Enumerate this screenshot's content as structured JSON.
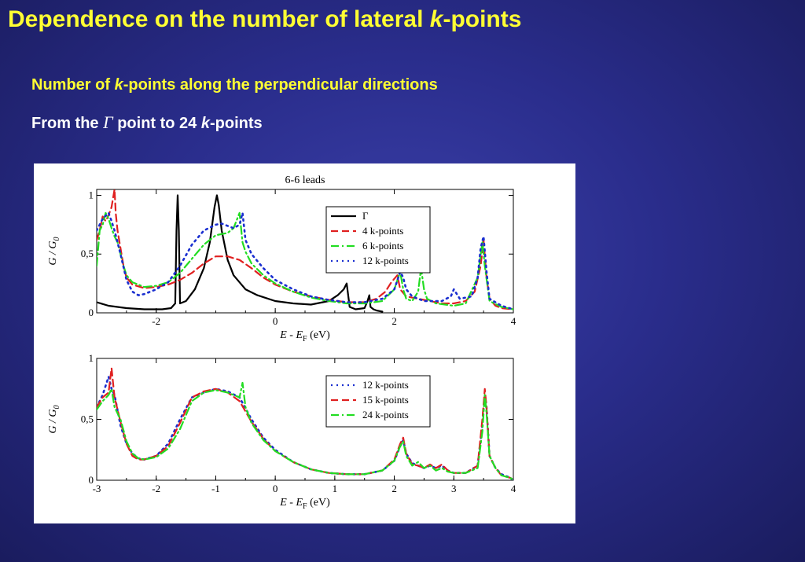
{
  "slide": {
    "title_main": "Dependence on the number of lateral ",
    "title_k": "k",
    "title_end": "-points",
    "line1_a": "Number of ",
    "line1_k": "k",
    "line1_b": "-points along the perpendicular directions",
    "line2_a": "From the ",
    "line2_gamma": "Γ",
    "line2_b": " point to 24 ",
    "line2_k": "k",
    "line2_c": "-points"
  },
  "chart_data": [
    {
      "type": "line",
      "title": "6-6 leads",
      "xlabel": "E - E_F (eV)",
      "ylabel": "G / G_0",
      "xlim": [
        -3,
        4
      ],
      "ylim": [
        0,
        1.05
      ],
      "xticks": [
        "-2",
        "0",
        "2",
        "4"
      ],
      "xtick_values": [
        -2,
        0,
        2,
        4
      ],
      "yticks": [
        "0",
        "0,5",
        "1"
      ],
      "ytick_values": [
        0,
        0.5,
        1
      ],
      "legend_position": "top-right",
      "series": [
        {
          "name": "Γ",
          "color": "#000000",
          "dash": "solid",
          "x": [
            -3.0,
            -2.8,
            -2.5,
            -2.2,
            -1.9,
            -1.75,
            -1.68,
            -1.66,
            -1.64,
            -1.62,
            -1.6,
            -1.5,
            -1.35,
            -1.2,
            -1.1,
            -1.02,
            -0.98,
            -0.95,
            -0.9,
            -0.8,
            -0.7,
            -0.5,
            -0.3,
            0.0,
            0.3,
            0.6,
            0.9,
            1.05,
            1.15,
            1.2,
            1.25,
            1.35,
            1.5,
            1.55,
            1.58,
            1.6,
            1.65,
            1.7,
            1.8
          ],
          "y": [
            0.09,
            0.06,
            0.04,
            0.03,
            0.03,
            0.04,
            0.08,
            0.7,
            1.0,
            0.7,
            0.08,
            0.1,
            0.2,
            0.38,
            0.6,
            0.9,
            1.0,
            0.92,
            0.7,
            0.45,
            0.32,
            0.2,
            0.15,
            0.1,
            0.08,
            0.07,
            0.1,
            0.15,
            0.2,
            0.25,
            0.05,
            0.03,
            0.04,
            0.1,
            0.15,
            0.05,
            0.03,
            0.02,
            0.01
          ]
        },
        {
          "name": "4 k-points",
          "color": "#e02020",
          "dash": "9,5",
          "x": [
            -3.0,
            -2.95,
            -2.9,
            -2.85,
            -2.8,
            -2.75,
            -2.7,
            -2.68,
            -2.65,
            -2.6,
            -2.55,
            -2.5,
            -2.4,
            -2.2,
            -2.0,
            -1.8,
            -1.6,
            -1.4,
            -1.2,
            -1.0,
            -0.8,
            -0.6,
            -0.4,
            -0.2,
            0.0,
            0.3,
            0.6,
            0.9,
            1.2,
            1.5,
            1.7,
            1.85,
            1.95,
            2.05,
            2.1,
            2.2,
            2.4,
            2.6,
            2.8,
            3.0,
            3.2,
            3.35,
            3.45,
            3.5,
            3.55,
            3.6,
            3.7,
            3.8,
            4.0
          ],
          "y": [
            0.62,
            0.7,
            0.82,
            0.78,
            0.83,
            0.9,
            1.05,
            0.85,
            0.7,
            0.55,
            0.4,
            0.3,
            0.24,
            0.21,
            0.22,
            0.24,
            0.28,
            0.34,
            0.42,
            0.48,
            0.48,
            0.45,
            0.38,
            0.3,
            0.24,
            0.18,
            0.14,
            0.11,
            0.09,
            0.09,
            0.12,
            0.18,
            0.26,
            0.32,
            0.2,
            0.14,
            0.12,
            0.1,
            0.08,
            0.08,
            0.1,
            0.18,
            0.4,
            0.62,
            0.3,
            0.12,
            0.06,
            0.04,
            0.03
          ]
        },
        {
          "name": "6 k-points",
          "color": "#22dd22",
          "dash": "10,4,2,4",
          "x": [
            -3.0,
            -2.95,
            -2.9,
            -2.85,
            -2.8,
            -2.75,
            -2.7,
            -2.65,
            -2.6,
            -2.55,
            -2.5,
            -2.4,
            -2.2,
            -2.0,
            -1.8,
            -1.6,
            -1.4,
            -1.2,
            -1.0,
            -0.8,
            -0.7,
            -0.6,
            -0.55,
            -0.5,
            -0.4,
            -0.2,
            0.0,
            0.3,
            0.6,
            0.9,
            1.2,
            1.5,
            1.8,
            2.0,
            2.1,
            2.15,
            2.2,
            2.3,
            2.4,
            2.45,
            2.5,
            2.55,
            2.7,
            3.0,
            3.2,
            3.4,
            3.48,
            3.52,
            3.6,
            3.8,
            4.0
          ],
          "y": [
            0.4,
            0.7,
            0.75,
            0.85,
            0.8,
            0.72,
            0.65,
            0.6,
            0.5,
            0.4,
            0.32,
            0.26,
            0.22,
            0.23,
            0.26,
            0.34,
            0.46,
            0.58,
            0.66,
            0.68,
            0.72,
            0.85,
            0.6,
            0.52,
            0.42,
            0.32,
            0.25,
            0.18,
            0.13,
            0.1,
            0.08,
            0.08,
            0.1,
            0.2,
            0.35,
            0.2,
            0.12,
            0.1,
            0.18,
            0.38,
            0.2,
            0.12,
            0.08,
            0.06,
            0.08,
            0.3,
            0.6,
            0.4,
            0.1,
            0.05,
            0.03
          ]
        },
        {
          "name": "12 k-points",
          "color": "#1a2fd0",
          "dash": "2,5",
          "x": [
            -3.0,
            -2.9,
            -2.8,
            -2.75,
            -2.7,
            -2.6,
            -2.5,
            -2.4,
            -2.3,
            -2.2,
            -2.0,
            -1.8,
            -1.6,
            -1.4,
            -1.2,
            -1.0,
            -0.9,
            -0.8,
            -0.7,
            -0.6,
            -0.55,
            -0.5,
            -0.4,
            -0.2,
            0.0,
            0.3,
            0.6,
            0.9,
            1.2,
            1.5,
            1.8,
            2.0,
            2.1,
            2.15,
            2.2,
            2.3,
            2.5,
            2.8,
            2.95,
            3.0,
            3.1,
            3.3,
            3.4,
            3.45,
            3.5,
            3.55,
            3.6,
            3.8,
            4.0
          ],
          "y": [
            0.7,
            0.8,
            0.85,
            0.78,
            0.7,
            0.5,
            0.28,
            0.18,
            0.15,
            0.16,
            0.2,
            0.26,
            0.4,
            0.58,
            0.7,
            0.75,
            0.76,
            0.74,
            0.72,
            0.75,
            0.85,
            0.62,
            0.5,
            0.38,
            0.28,
            0.2,
            0.14,
            0.11,
            0.09,
            0.09,
            0.12,
            0.2,
            0.35,
            0.3,
            0.2,
            0.14,
            0.1,
            0.1,
            0.14,
            0.2,
            0.12,
            0.14,
            0.3,
            0.55,
            0.65,
            0.35,
            0.12,
            0.06,
            0.03
          ]
        }
      ]
    },
    {
      "type": "line",
      "title": "",
      "xlabel": "E - E_F (eV)",
      "ylabel": "G / G_0",
      "xlim": [
        -3,
        4
      ],
      "ylim": [
        0,
        1.0
      ],
      "xticks": [
        "-3",
        "-2",
        "-1",
        "0",
        "1",
        "2",
        "3",
        "4"
      ],
      "xtick_values": [
        -3,
        -2,
        -1,
        0,
        1,
        2,
        3,
        4
      ],
      "yticks": [
        "0",
        "0,5",
        "1"
      ],
      "ytick_values": [
        0,
        0.5,
        1
      ],
      "legend_position": "top-right",
      "series": [
        {
          "name": "12 k-points",
          "color": "#1a2fd0",
          "dash": "2,5",
          "x": [
            -3.0,
            -2.9,
            -2.8,
            -2.75,
            -2.7,
            -2.6,
            -2.5,
            -2.4,
            -2.3,
            -2.2,
            -2.0,
            -1.8,
            -1.6,
            -1.4,
            -1.2,
            -1.0,
            -0.8,
            -0.6,
            -0.4,
            -0.2,
            0.0,
            0.3,
            0.6,
            0.9,
            1.2,
            1.5,
            1.8,
            2.0,
            2.1,
            2.15,
            2.2,
            2.3,
            2.4,
            2.5,
            2.6,
            2.7,
            2.8,
            2.9,
            3.0,
            3.2,
            3.4,
            3.48,
            3.52,
            3.55,
            3.6,
            3.7,
            3.8,
            3.95,
            4.0
          ],
          "y": [
            0.6,
            0.7,
            0.85,
            0.75,
            0.7,
            0.45,
            0.3,
            0.22,
            0.18,
            0.17,
            0.2,
            0.3,
            0.5,
            0.68,
            0.72,
            0.75,
            0.73,
            0.68,
            0.5,
            0.35,
            0.25,
            0.15,
            0.09,
            0.06,
            0.05,
            0.05,
            0.08,
            0.16,
            0.28,
            0.33,
            0.22,
            0.14,
            0.12,
            0.1,
            0.12,
            0.1,
            0.12,
            0.08,
            0.06,
            0.06,
            0.12,
            0.45,
            0.7,
            0.6,
            0.2,
            0.1,
            0.05,
            0.02,
            0.0
          ]
        },
        {
          "name": "15 k-points",
          "color": "#e02020",
          "dash": "9,5",
          "x": [
            -3.0,
            -2.9,
            -2.8,
            -2.75,
            -2.7,
            -2.6,
            -2.5,
            -2.4,
            -2.3,
            -2.2,
            -2.0,
            -1.8,
            -1.6,
            -1.4,
            -1.2,
            -1.0,
            -0.8,
            -0.6,
            -0.4,
            -0.2,
            0.0,
            0.3,
            0.6,
            0.9,
            1.2,
            1.5,
            1.8,
            2.0,
            2.1,
            2.15,
            2.2,
            2.3,
            2.4,
            2.5,
            2.6,
            2.7,
            2.8,
            2.9,
            3.0,
            3.2,
            3.4,
            3.48,
            3.52,
            3.55,
            3.6,
            3.7,
            3.8,
            3.95,
            4.0
          ],
          "y": [
            0.6,
            0.68,
            0.72,
            0.92,
            0.68,
            0.48,
            0.3,
            0.2,
            0.17,
            0.17,
            0.2,
            0.28,
            0.47,
            0.68,
            0.73,
            0.75,
            0.72,
            0.65,
            0.48,
            0.34,
            0.24,
            0.15,
            0.09,
            0.06,
            0.05,
            0.05,
            0.08,
            0.17,
            0.3,
            0.35,
            0.22,
            0.13,
            0.12,
            0.1,
            0.13,
            0.1,
            0.13,
            0.08,
            0.06,
            0.06,
            0.12,
            0.5,
            0.75,
            0.6,
            0.2,
            0.1,
            0.04,
            0.02,
            0.0
          ]
        },
        {
          "name": "24 k-points",
          "color": "#22dd22",
          "dash": "10,4,2,4",
          "x": [
            -3.0,
            -2.9,
            -2.8,
            -2.75,
            -2.7,
            -2.6,
            -2.5,
            -2.4,
            -2.3,
            -2.2,
            -2.0,
            -1.8,
            -1.6,
            -1.4,
            -1.2,
            -1.0,
            -0.8,
            -0.6,
            -0.55,
            -0.5,
            -0.4,
            -0.2,
            0.0,
            0.3,
            0.6,
            0.9,
            1.2,
            1.5,
            1.8,
            2.0,
            2.1,
            2.15,
            2.2,
            2.3,
            2.4,
            2.5,
            2.6,
            2.7,
            2.8,
            2.9,
            3.0,
            3.2,
            3.4,
            3.48,
            3.52,
            3.55,
            3.6,
            3.7,
            3.8,
            3.95,
            4.0
          ],
          "y": [
            0.58,
            0.65,
            0.7,
            0.75,
            0.6,
            0.5,
            0.32,
            0.22,
            0.18,
            0.17,
            0.19,
            0.26,
            0.42,
            0.65,
            0.72,
            0.74,
            0.72,
            0.68,
            0.8,
            0.6,
            0.47,
            0.33,
            0.24,
            0.15,
            0.09,
            0.06,
            0.05,
            0.05,
            0.08,
            0.16,
            0.28,
            0.32,
            0.2,
            0.12,
            0.15,
            0.1,
            0.12,
            0.08,
            0.1,
            0.07,
            0.06,
            0.06,
            0.1,
            0.4,
            0.7,
            0.55,
            0.2,
            0.1,
            0.04,
            0.02,
            0.0
          ]
        }
      ]
    }
  ]
}
